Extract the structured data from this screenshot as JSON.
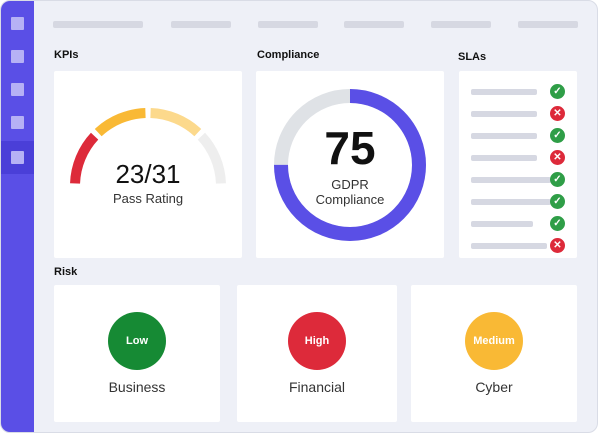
{
  "colors": {
    "rail": "#5a4fe6",
    "accent": "#5a4fe6",
    "ok": "#2f9e47",
    "bad": "#dd2a3a",
    "low": "#168a34",
    "high": "#dd2a3a",
    "medium": "#f9b935"
  },
  "sidebar": {
    "items": [
      {
        "icon": "nav-square-icon",
        "active": false
      },
      {
        "icon": "nav-square-icon",
        "active": false
      },
      {
        "icon": "nav-square-icon",
        "active": false
      },
      {
        "icon": "nav-square-icon",
        "active": false
      },
      {
        "icon": "nav-square-icon",
        "active": true
      }
    ]
  },
  "kpis": {
    "label": "KPIs",
    "value": "23/31",
    "subtitle": "Pass Rating",
    "pass": 23,
    "total": 31,
    "gauge_colors": [
      "#dd2a3a",
      "#f9b935",
      "#fcd98c",
      "#eeeeee"
    ]
  },
  "compliance": {
    "label": "Compliance",
    "value": "75",
    "line1": "GDPR",
    "line2": "Compliance",
    "percent": 75
  },
  "slas": {
    "label": "SLAs",
    "rows": [
      {
        "status": "ok"
      },
      {
        "status": "bad"
      },
      {
        "status": "ok"
      },
      {
        "status": "bad"
      },
      {
        "status": "ok"
      },
      {
        "status": "ok"
      },
      {
        "status": "ok"
      },
      {
        "status": "bad"
      }
    ],
    "ok_glyph": "✓",
    "bad_glyph": "✕"
  },
  "risk": {
    "label": "Risk",
    "cards": [
      {
        "level": "Low",
        "caption": "Business",
        "color": "#168a34"
      },
      {
        "level": "High",
        "caption": "Financial",
        "color": "#dd2a3a"
      },
      {
        "level": "Medium",
        "caption": "Cyber",
        "color": "#f9b935"
      }
    ]
  }
}
